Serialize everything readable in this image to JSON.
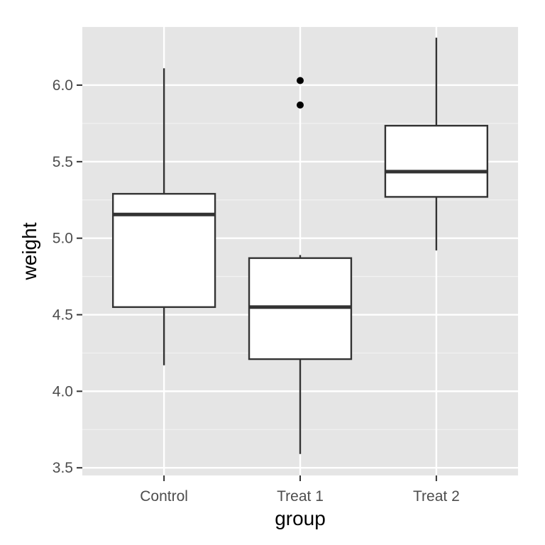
{
  "chart_data": {
    "type": "boxplot",
    "title": "",
    "xlabel": "group",
    "ylabel": "weight",
    "ylim": [
      3.45,
      6.38
    ],
    "yticks": [
      "3.5",
      "4.0",
      "4.5",
      "5.0",
      "5.5",
      "6.0"
    ],
    "ytick_values": [
      3.5,
      4.0,
      4.5,
      5.0,
      5.5,
      6.0
    ],
    "categories": [
      "Control",
      "Treat 1",
      "Treat 2"
    ],
    "boxes": [
      {
        "category": "Control",
        "whisker_low": 4.17,
        "q1": 4.55,
        "median": 5.155,
        "q3": 5.29,
        "whisker_high": 6.11,
        "outliers": []
      },
      {
        "category": "Treat 1",
        "whisker_low": 3.59,
        "q1": 4.21,
        "median": 4.55,
        "q3": 4.87,
        "whisker_high": 4.89,
        "outliers": [
          5.87,
          6.03
        ]
      },
      {
        "category": "Treat 2",
        "whisker_low": 4.92,
        "q1": 5.27,
        "median": 5.435,
        "q3": 5.735,
        "whisker_high": 6.31,
        "outliers": []
      }
    ],
    "grid": true,
    "colors": {
      "panel_background": "#e5e5e5",
      "grid_major": "#ffffff",
      "grid_minor": "#f2f2f2",
      "box_fill": "#ffffff",
      "box_outline": "#333333",
      "tick_text": "#4d4d4d",
      "axis_title": "#000000"
    }
  }
}
